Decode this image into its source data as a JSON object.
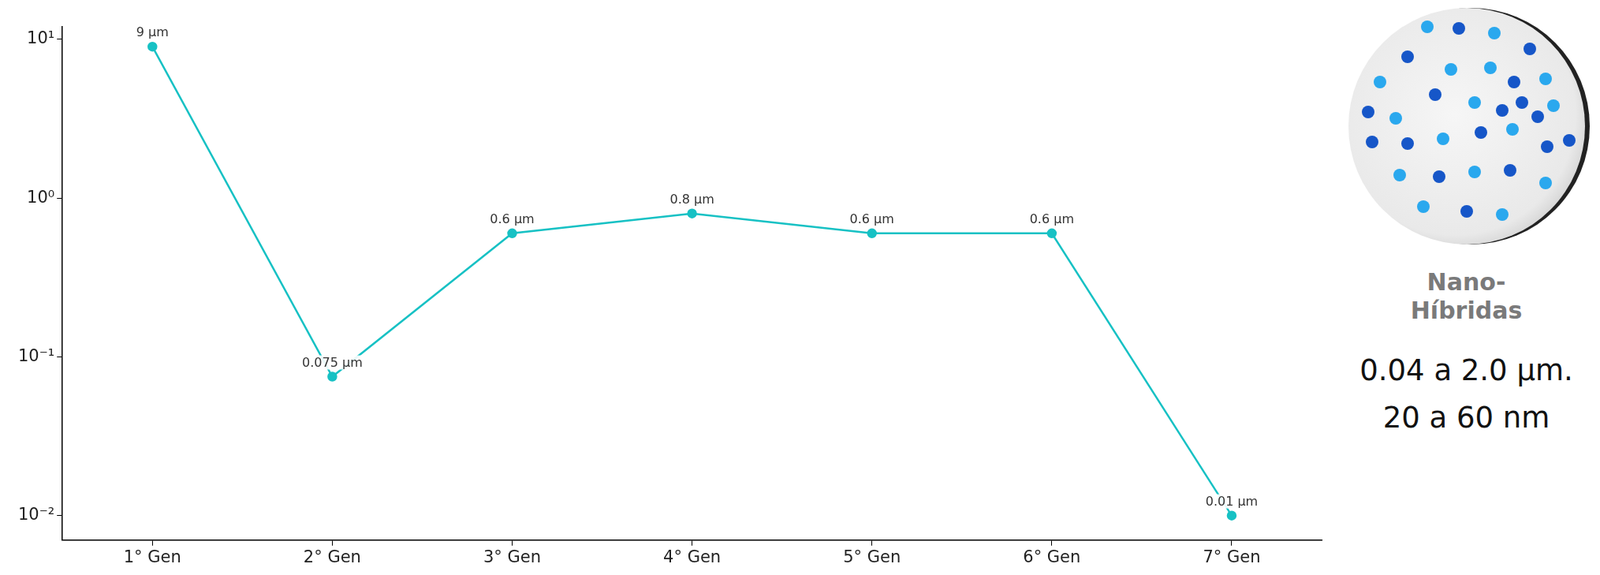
{
  "chart_data": {
    "type": "line",
    "categories": [
      "1° Gen",
      "2° Gen",
      "3° Gen",
      "4° Gen",
      "5° Gen",
      "6° Gen",
      "7° Gen"
    ],
    "values": [
      9,
      0.075,
      0.6,
      0.8,
      0.6,
      0.6,
      0.01
    ],
    "value_labels": [
      "9 µm",
      "0.075 µm",
      "0.6 µm",
      "0.8 µm",
      "0.6 µm",
      "0.6 µm",
      "0.01 µm"
    ],
    "color": "#17c1c4",
    "marker": "circle",
    "line_style": "solid",
    "log": "y",
    "ylim": [
      0.007,
      12
    ],
    "yticks": [
      {
        "value": 0.01,
        "label": "10⁻²"
      },
      {
        "value": 0.1,
        "label": "10⁻¹"
      },
      {
        "value": 1,
        "label": "10⁰"
      },
      {
        "value": 10,
        "label": "10¹"
      }
    ],
    "grid": false,
    "data_labels": true
  },
  "panel": {
    "title": "Nano-Híbridas",
    "lines": [
      "0.04 a 2.0 µm.",
      "20 a 60 nm"
    ]
  }
}
